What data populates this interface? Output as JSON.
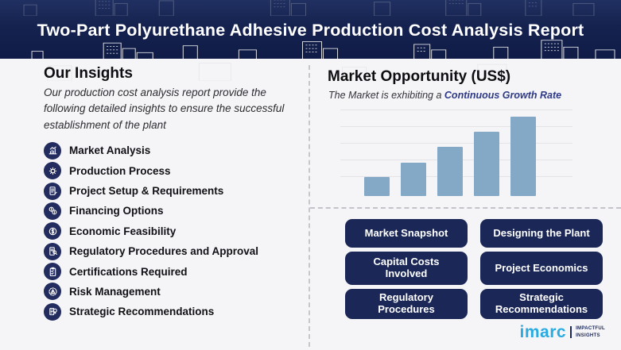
{
  "header": {
    "title": "Two-Part Polyurethane Adhesive Production Cost Analysis Report"
  },
  "insights": {
    "title": "Our Insights",
    "description": "Our production cost analysis report provide the following detailed insights to ensure the successful establishment of the plant",
    "items": [
      {
        "label": "Market Analysis",
        "icon": "market-analysis-icon"
      },
      {
        "label": "Production Process",
        "icon": "production-process-icon"
      },
      {
        "label": "Project Setup & Requirements",
        "icon": "project-setup-icon"
      },
      {
        "label": "Financing Options",
        "icon": "financing-options-icon"
      },
      {
        "label": "Economic Feasibility",
        "icon": "economic-feasibility-icon"
      },
      {
        "label": "Regulatory Procedures and Approval",
        "icon": "regulatory-procedures-icon"
      },
      {
        "label": "Certifications Required",
        "icon": "certifications-icon"
      },
      {
        "label": "Risk Management",
        "icon": "risk-management-icon"
      },
      {
        "label": "Strategic Recommendations",
        "icon": "strategic-recommendations-icon"
      }
    ]
  },
  "market": {
    "title": "Market Opportunity (US$)",
    "subtitle_prefix": "The Market is exhibiting a ",
    "subtitle_highlight": "Continuous Growth Rate"
  },
  "chart_data": {
    "type": "bar",
    "categories": [
      "",
      "",
      "",
      "",
      ""
    ],
    "values": [
      24,
      42,
      62,
      81,
      100
    ],
    "title": "Market Opportunity (US$)",
    "xlabel": "",
    "ylabel": "",
    "ylim": [
      0,
      100
    ],
    "grid": true,
    "tick_labels_visible": false,
    "bar_color": "#84a9c7",
    "baseline_style": "dashed",
    "note": "Unlabeled ascending bars illustrating continuous market growth; values are relative heights (% of tallest bar)."
  },
  "buttons": [
    "Market Snapshot",
    "Designing the Plant",
    "Capital Costs\nInvolved",
    "Project Economics",
    "Regulatory\nProcedures",
    "Strategic\nRecommendations"
  ],
  "logo": {
    "brand": "imarc",
    "tagline_line1": "IMPACTFUL",
    "tagline_line2": "INSIGHTS"
  },
  "colors": {
    "header_navy": "#15224f",
    "button_navy": "#1a2757",
    "icon_navy": "#232c5f",
    "bar_blue": "#84a9c7",
    "highlight_navy": "#2e3a87",
    "brand_cyan": "#29abe2"
  }
}
